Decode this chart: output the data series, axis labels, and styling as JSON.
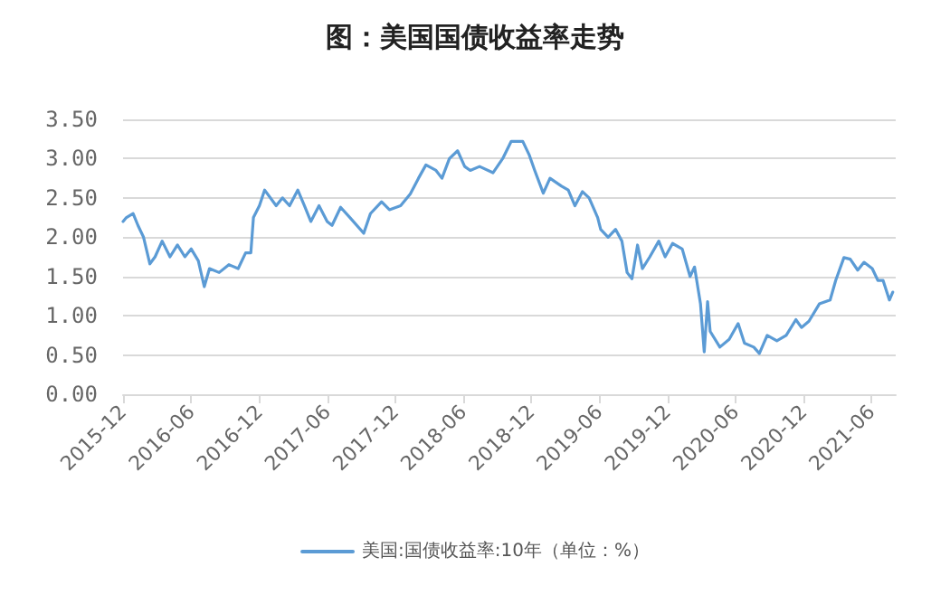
{
  "chart_data": {
    "type": "line",
    "title": "图：美国国债收益率走势",
    "series": [
      {
        "name": "美国:国债收益率:10年（单位：%）",
        "color": "#5b9bd5",
        "x": [
          "2015-12-01",
          "2015-12-10",
          "2015-12-28",
          "2016-01-10",
          "2016-01-25",
          "2016-02-11",
          "2016-02-25",
          "2016-03-15",
          "2016-04-05",
          "2016-04-25",
          "2016-05-15",
          "2016-06-01",
          "2016-06-20",
          "2016-07-06",
          "2016-07-20",
          "2016-08-15",
          "2016-09-10",
          "2016-10-05",
          "2016-10-25",
          "2016-11-08",
          "2016-11-15",
          "2016-12-01",
          "2016-12-15",
          "2017-01-15",
          "2017-02-01",
          "2017-02-20",
          "2017-03-14",
          "2017-04-01",
          "2017-04-18",
          "2017-05-10",
          "2017-06-01",
          "2017-06-14",
          "2017-07-07",
          "2017-08-01",
          "2017-09-07",
          "2017-09-25",
          "2017-10-25",
          "2017-11-15",
          "2017-12-15",
          "2018-01-10",
          "2018-02-01",
          "2018-02-21",
          "2018-03-20",
          "2018-04-05",
          "2018-04-25",
          "2018-05-17",
          "2018-06-05",
          "2018-06-20",
          "2018-07-15",
          "2018-08-20",
          "2018-09-15",
          "2018-10-08",
          "2018-11-08",
          "2018-11-25",
          "2018-12-10",
          "2019-01-02",
          "2019-01-20",
          "2019-02-20",
          "2019-03-10",
          "2019-03-28",
          "2019-04-17",
          "2019-05-05",
          "2019-05-28",
          "2019-06-05",
          "2019-06-25",
          "2019-07-15",
          "2019-08-01",
          "2019-08-15",
          "2019-08-28",
          "2019-09-12",
          "2019-09-25",
          "2019-10-15",
          "2019-11-08",
          "2019-11-25",
          "2019-12-15",
          "2020-01-10",
          "2020-01-31",
          "2020-02-12",
          "2020-02-28",
          "2020-03-09",
          "2020-03-18",
          "2020-03-25",
          "2020-04-20",
          "2020-05-15",
          "2020-06-08",
          "2020-06-25",
          "2020-07-20",
          "2020-08-04",
          "2020-08-25",
          "2020-09-20",
          "2020-10-15",
          "2020-11-10",
          "2020-11-25",
          "2020-12-15",
          "2021-01-12",
          "2021-02-10",
          "2021-02-25",
          "2021-03-19",
          "2021-04-05",
          "2021-04-25",
          "2021-05-12",
          "2021-06-03",
          "2021-06-18",
          "2021-07-02",
          "2021-07-19",
          "2021-07-28"
        ],
        "values": [
          2.2,
          2.25,
          2.3,
          2.15,
          2.0,
          1.66,
          1.75,
          1.95,
          1.75,
          1.9,
          1.75,
          1.85,
          1.7,
          1.37,
          1.6,
          1.55,
          1.65,
          1.6,
          1.8,
          1.8,
          2.25,
          2.4,
          2.6,
          2.4,
          2.5,
          2.4,
          2.6,
          2.4,
          2.2,
          2.4,
          2.2,
          2.15,
          2.38,
          2.25,
          2.05,
          2.3,
          2.45,
          2.35,
          2.4,
          2.55,
          2.75,
          2.92,
          2.85,
          2.75,
          3.0,
          3.1,
          2.9,
          2.85,
          2.9,
          2.82,
          3.0,
          3.22,
          3.22,
          3.05,
          2.85,
          2.56,
          2.75,
          2.65,
          2.6,
          2.4,
          2.58,
          2.5,
          2.25,
          2.1,
          2.0,
          2.1,
          1.95,
          1.55,
          1.47,
          1.9,
          1.6,
          1.75,
          1.95,
          1.75,
          1.92,
          1.85,
          1.5,
          1.62,
          1.15,
          0.54,
          1.18,
          0.8,
          0.6,
          0.7,
          0.9,
          0.65,
          0.6,
          0.52,
          0.75,
          0.68,
          0.75,
          0.95,
          0.85,
          0.93,
          1.15,
          1.2,
          1.45,
          1.74,
          1.72,
          1.58,
          1.68,
          1.6,
          1.45,
          1.45,
          1.2,
          1.3
        ]
      }
    ],
    "xlim": [
      "2015-12-01",
      "2021-08-05"
    ],
    "xticks": [
      "2015-12",
      "2016-06",
      "2016-12",
      "2017-06",
      "2017-12",
      "2018-06",
      "2018-12",
      "2019-06",
      "2019-12",
      "2020-06",
      "2020-12",
      "2021-06"
    ],
    "ylim": [
      0,
      3.5
    ],
    "yticks": [
      {
        "value": 0,
        "label": "0.00"
      },
      {
        "value": 0.5,
        "label": "0.50"
      },
      {
        "value": 1,
        "label": "1.00"
      },
      {
        "value": 1.5,
        "label": "1.50"
      },
      {
        "value": 2,
        "label": "2.00"
      },
      {
        "value": 2.5,
        "label": "2.50"
      },
      {
        "value": 3,
        "label": "3.00"
      },
      {
        "value": 3.5,
        "label": "3.50"
      }
    ],
    "grid": "y",
    "legend": "bottom",
    "marker": "none",
    "line_style": "solid"
  }
}
